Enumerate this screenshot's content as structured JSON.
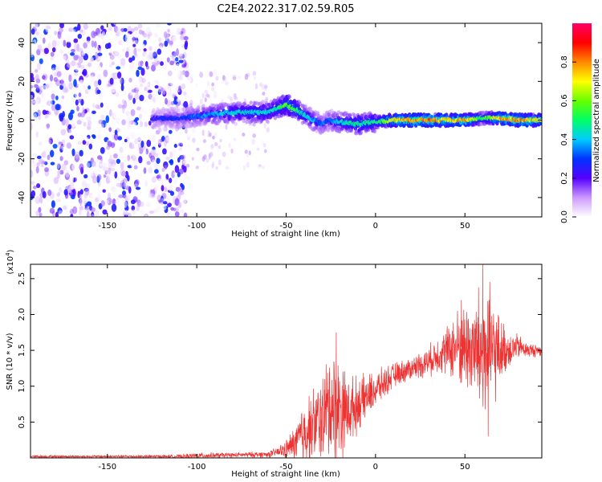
{
  "title": "C2E4.2022.317.02.59.R05",
  "chart_data": [
    {
      "type": "heatmap",
      "name": "spectrogram",
      "xlabel": "Height of straight line (km)",
      "ylabel": "Frequency (Hz)",
      "xlim": [
        -193,
        93
      ],
      "ylim": [
        -50,
        50
      ],
      "xticks": [
        -150,
        -100,
        -50,
        0,
        50
      ],
      "yticks": [
        -40,
        -20,
        0,
        20,
        40
      ],
      "colorbar": {
        "label": "Normalized spectral amplitude",
        "range": [
          0.0,
          1.0
        ],
        "ticks": [
          "0.0",
          "0.2",
          "0.4",
          "0.6",
          "0.8"
        ],
        "tick_values": [
          0.0,
          0.2,
          0.4,
          0.6,
          0.8
        ],
        "colors": [
          "#ffffff",
          "#cc99ff",
          "#5500ff",
          "#0033ff",
          "#00ccff",
          "#00ff66",
          "#66ff00",
          "#ffff00",
          "#ff8800",
          "#ff0000",
          "#ff0066"
        ]
      },
      "ridge": {
        "description": "bright narrow band near 0 Hz",
        "x": [
          -125,
          -110,
          -100,
          -90,
          -80,
          -70,
          -60,
          -55,
          -50,
          -45,
          -40,
          -35,
          -30,
          -25,
          -20,
          -10,
          0,
          10,
          20,
          30,
          40,
          50,
          60,
          70,
          80,
          90
        ],
        "freq": [
          1,
          1,
          2,
          3,
          4,
          4,
          4,
          6,
          8,
          6,
          3,
          0,
          -2,
          0,
          -1,
          -2,
          -1,
          0,
          0,
          0,
          0,
          0,
          1,
          1,
          0,
          0
        ],
        "amplitude": [
          0.25,
          0.3,
          0.35,
          0.4,
          0.45,
          0.45,
          0.45,
          0.5,
          0.6,
          0.55,
          0.45,
          0.4,
          0.35,
          0.35,
          0.45,
          0.5,
          0.5,
          0.75,
          0.85,
          0.85,
          0.75,
          0.85,
          0.5,
          0.8,
          0.85,
          0.75
        ]
      },
      "noise_region_x": [
        -193,
        -105
      ],
      "sparse_region_x": [
        -105,
        -60
      ]
    },
    {
      "type": "line",
      "name": "snr",
      "xlabel": "Height of straight line (km)",
      "ylabel": "SNR (10 * v/v)",
      "y_multiplier_label": "(x10",
      "y_multiplier_exp": "4",
      "xlim": [
        -193,
        93
      ],
      "ylim": [
        0,
        2.7
      ],
      "xticks": [
        -150,
        -100,
        -50,
        0,
        50
      ],
      "yticks": [
        0.5,
        1.0,
        1.5,
        2.0,
        2.5
      ],
      "ytick_labels": [
        "0.5",
        "1.0",
        "1.5",
        "2.0",
        "2.5"
      ],
      "color": "#ee3333",
      "envelope": {
        "x": [
          -193,
          -150,
          -110,
          -100,
          -80,
          -60,
          -55,
          -50,
          -45,
          -40,
          -35,
          -30,
          -25,
          -20,
          -15,
          -10,
          -5,
          0,
          10,
          20,
          30,
          35,
          40,
          45,
          50,
          55,
          60,
          65,
          70,
          75,
          80,
          85,
          93
        ],
        "mean": [
          0.02,
          0.02,
          0.02,
          0.03,
          0.04,
          0.05,
          0.08,
          0.12,
          0.2,
          0.35,
          0.45,
          0.55,
          0.75,
          0.7,
          0.65,
          0.75,
          0.85,
          0.95,
          1.15,
          1.25,
          1.35,
          1.45,
          1.5,
          1.55,
          1.55,
          1.5,
          1.45,
          1.45,
          1.5,
          1.52,
          1.55,
          1.5,
          1.5
        ],
        "amp": [
          0.02,
          0.02,
          0.03,
          0.05,
          0.04,
          0.05,
          0.08,
          0.15,
          0.3,
          0.55,
          0.6,
          0.7,
          0.95,
          0.85,
          0.55,
          0.45,
          0.35,
          0.3,
          0.2,
          0.18,
          0.25,
          0.3,
          0.4,
          0.6,
          0.7,
          0.85,
          1.25,
          1.0,
          0.5,
          0.3,
          0.2,
          0.12,
          0.1
        ]
      },
      "peaks": [
        {
          "x": -22,
          "y": 1.75
        },
        {
          "x": 48,
          "y": 2.2
        },
        {
          "x": 60,
          "y": 2.7
        },
        {
          "x": 63,
          "y": 0.3
        }
      ]
    }
  ]
}
